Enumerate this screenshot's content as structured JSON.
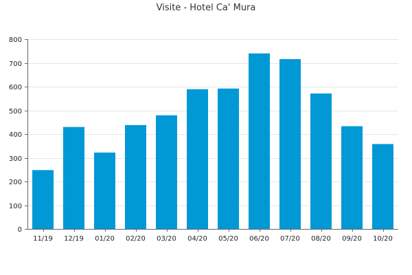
{
  "chart_data": {
    "type": "bar",
    "title": "Visite - Hotel Ca' Mura",
    "xlabel": "",
    "ylabel": "",
    "categories": [
      "11/19",
      "12/19",
      "01/20",
      "02/20",
      "03/20",
      "04/20",
      "05/20",
      "06/20",
      "07/20",
      "08/20",
      "09/20",
      "10/20"
    ],
    "values": [
      248,
      430,
      322,
      438,
      479,
      589,
      592,
      740,
      716,
      571,
      433,
      358
    ],
    "ylim": [
      0,
      800
    ],
    "yticks": [
      0,
      100,
      200,
      300,
      400,
      500,
      600,
      700,
      800
    ],
    "bar_color": "#0099d6",
    "grid": true,
    "legend": "none"
  }
}
